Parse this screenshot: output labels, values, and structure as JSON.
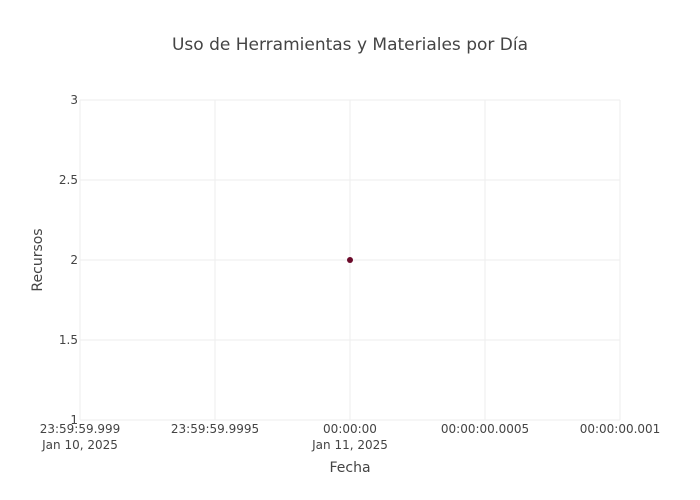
{
  "chart_data": {
    "type": "scatter",
    "title": "Uso de Herramientas y Materiales por Día",
    "xlabel": "Fecha",
    "ylabel": "Recursos",
    "grid": true,
    "ylim": [
      1,
      3
    ],
    "xlim": [
      "2025-01-10 23:59:59.999",
      "2025-01-11 00:00:00.001"
    ],
    "x_ticks": [
      {
        "line1": "23:59:59.999",
        "line2": "Jan 10, 2025"
      },
      {
        "line1": "23:59:59.9995",
        "line2": ""
      },
      {
        "line1": "00:00:00",
        "line2": "Jan 11, 2025"
      },
      {
        "line1": "00:00:00.0005",
        "line2": ""
      },
      {
        "line1": "00:00:00.001",
        "line2": ""
      }
    ],
    "y_ticks": [
      "1",
      "1.5",
      "2",
      "2.5",
      "3"
    ],
    "series": [
      {
        "x": [
          "2025-01-11 00:00:00"
        ],
        "y": [
          2
        ],
        "color": "#6b0a2a"
      }
    ]
  }
}
